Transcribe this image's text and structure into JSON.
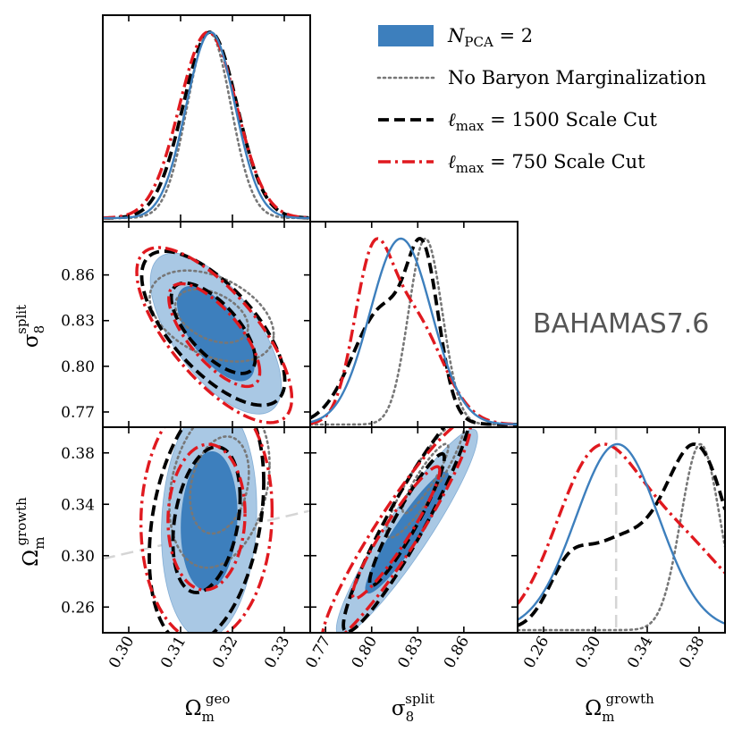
{
  "chart_data": {
    "type": "corner",
    "annotation": "BAHAMAS7.6",
    "parameters": [
      {
        "key": "om_geo",
        "symbol": "Ω",
        "subscript": "m",
        "superscript": "geo",
        "range": [
          0.295,
          0.335
        ],
        "ticks": [
          "0.30",
          "0.31",
          "0.32",
          "0.33"
        ]
      },
      {
        "key": "s8_split",
        "symbol": "σ",
        "subscript": "8",
        "superscript": "split",
        "range": [
          0.76,
          0.895
        ],
        "ticks": [
          "0.77",
          "0.80",
          "0.83",
          "0.86"
        ]
      },
      {
        "key": "om_growth",
        "symbol": "Ω",
        "subscript": "m",
        "superscript": "growth",
        "range": [
          0.24,
          0.4
        ],
        "ticks": [
          "0.26",
          "0.30",
          "0.34",
          "0.38"
        ]
      }
    ],
    "series": [
      {
        "name": "N_PCA = 2",
        "legend_main": "N",
        "legend_sub": "PCA",
        "legend_rest": " = 2",
        "color": "#3d7fbd",
        "fill_inner": "#3d7fbd",
        "fill_outer": "#a9c8e4",
        "style": "solid"
      },
      {
        "name": "No Baryon Marginalization",
        "legend_main": "No Baryon Marginalization",
        "legend_sub": "",
        "legend_rest": "",
        "color": "#777777",
        "style": "dotted"
      },
      {
        "name": "ℓmax = 1500 Scale Cut",
        "legend_main": "ℓ",
        "legend_sub": "max",
        "legend_rest": " = 1500 Scale Cut",
        "color": "#000000",
        "style": "dashed"
      },
      {
        "name": "ℓmax = 750 Scale Cut",
        "legend_main": "ℓ",
        "legend_sub": "max",
        "legend_rest": " = 750 Scale Cut",
        "color": "#e0191f",
        "style": "dashdot"
      }
    ],
    "marginals": {
      "om_geo": [
        {
          "series": 0,
          "mean": 0.3158,
          "sigma": 0.0047
        },
        {
          "series": 1,
          "mean": 0.3155,
          "sigma": 0.0042
        },
        {
          "series": 2,
          "mean": 0.3157,
          "sigma": 0.0052
        },
        {
          "series": 3,
          "mean": 0.3153,
          "sigma": 0.0055
        }
      ],
      "s8_split": [
        {
          "series": 0,
          "components": [
            {
              "mean": 0.819,
              "sigma": 0.02,
              "weight": 1.0
            }
          ]
        },
        {
          "series": 1,
          "components": [
            {
              "mean": 0.835,
              "sigma": 0.011,
              "weight": 1.0
            }
          ]
        },
        {
          "series": 2,
          "components": [
            {
              "mean": 0.834,
              "sigma": 0.01,
              "weight": 0.62
            },
            {
              "mean": 0.808,
              "sigma": 0.02,
              "weight": 0.55
            }
          ]
        },
        {
          "series": 3,
          "components": [
            {
              "mean": 0.8,
              "sigma": 0.012,
              "weight": 0.7
            },
            {
              "mean": 0.825,
              "sigma": 0.02,
              "weight": 0.6
            }
          ]
        }
      ],
      "om_growth": [
        {
          "series": 0,
          "components": [
            {
              "mean": 0.317,
              "sigma": 0.032,
              "weight": 1.0
            }
          ]
        },
        {
          "series": 1,
          "components": [
            {
              "mean": 0.381,
              "sigma": 0.015,
              "weight": 1.0
            }
          ]
        },
        {
          "series": 2,
          "components": [
            {
              "mean": 0.379,
              "sigma": 0.024,
              "weight": 0.8
            },
            {
              "mean": 0.318,
              "sigma": 0.03,
              "weight": 0.4
            },
            {
              "mean": 0.278,
              "sigma": 0.015,
              "weight": 0.18
            }
          ]
        },
        {
          "series": 3,
          "components": [
            {
              "mean": 0.297,
              "sigma": 0.03,
              "weight": 0.92
            },
            {
              "mean": 0.352,
              "sigma": 0.045,
              "weight": 0.7
            }
          ]
        }
      ]
    },
    "contours": {
      "s8_vs_omgeo": [
        {
          "series": 0,
          "center": [
            0.3168,
            0.8215
          ],
          "sx": 0.0055,
          "sy": 0.023,
          "rho": -0.65,
          "levels": [
            1,
            2
          ],
          "fill": true
        },
        {
          "series": 1,
          "center": [
            0.316,
            0.833
          ],
          "sx": 0.0052,
          "sy": 0.013,
          "rho": -0.4,
          "levels": [
            1,
            2
          ],
          "fill": false
        },
        {
          "series": 2,
          "center": [
            0.3163,
            0.825
          ],
          "sx": 0.006,
          "sy": 0.022,
          "rho": -0.68,
          "levels": [
            1,
            2
          ],
          "fill": false
        },
        {
          "series": 3,
          "center": [
            0.3165,
            0.8205
          ],
          "sx": 0.0065,
          "sy": 0.025,
          "rho": -0.72,
          "levels": [
            1,
            2
          ],
          "fill": false
        }
      ],
      "omgrowth_vs_omgeo": [
        {
          "series": 0,
          "center": [
            0.3155,
            0.327
          ],
          "sx": 0.004,
          "sy": 0.04,
          "rho": 0.1,
          "levels": [
            1,
            2
          ],
          "fill": true
        },
        {
          "series": 1,
          "center": [
            0.3175,
            0.355
          ],
          "sx": 0.0042,
          "sy": 0.028,
          "rho": 0.25,
          "levels": [
            1,
            2
          ],
          "fill": false
        },
        {
          "series": 2,
          "center": [
            0.315,
            0.328
          ],
          "sx": 0.0048,
          "sy": 0.042,
          "rho": 0.3,
          "levels": [
            1,
            2
          ],
          "fill": false
        },
        {
          "series": 3,
          "center": [
            0.315,
            0.33
          ],
          "sx": 0.0055,
          "sy": 0.042,
          "rho": 0.05,
          "levels": [
            1,
            2
          ],
          "fill": false
        }
      ],
      "omgrowth_vs_s8": [
        {
          "series": 0,
          "center": [
            0.823,
            0.318
          ],
          "sx": 0.02,
          "sy": 0.035,
          "rho": 0.93,
          "levels": [
            1,
            2
          ],
          "fill": true
        },
        {
          "series": 1,
          "center": [
            0.835,
            0.36
          ],
          "sx": 0.011,
          "sy": 0.02,
          "rho": 0.9,
          "levels": [
            1,
            2
          ],
          "fill": false
        },
        {
          "series": 2,
          "center": [
            0.823,
            0.328
          ],
          "sx": 0.018,
          "sy": 0.038,
          "rho": 0.94,
          "levels": [
            1,
            2
          ],
          "fill": false
        },
        {
          "series": 3,
          "center": [
            0.816,
            0.318
          ],
          "sx": 0.021,
          "sy": 0.038,
          "rho": 0.94,
          "levels": [
            1,
            2
          ],
          "fill": false
        }
      ]
    },
    "reference_lines": [
      {
        "panel": "omgrowth_vs_omgeo",
        "orientation": "line",
        "from": [
          0.295,
          0.2975
        ],
        "to": [
          0.335,
          0.335
        ],
        "color": "#d5d5d5",
        "style": "dashed"
      },
      {
        "panel": "omgrowth_marginal",
        "orientation": "vertical",
        "value": 0.316,
        "color": "#d5d5d5",
        "style": "dashed"
      }
    ]
  }
}
